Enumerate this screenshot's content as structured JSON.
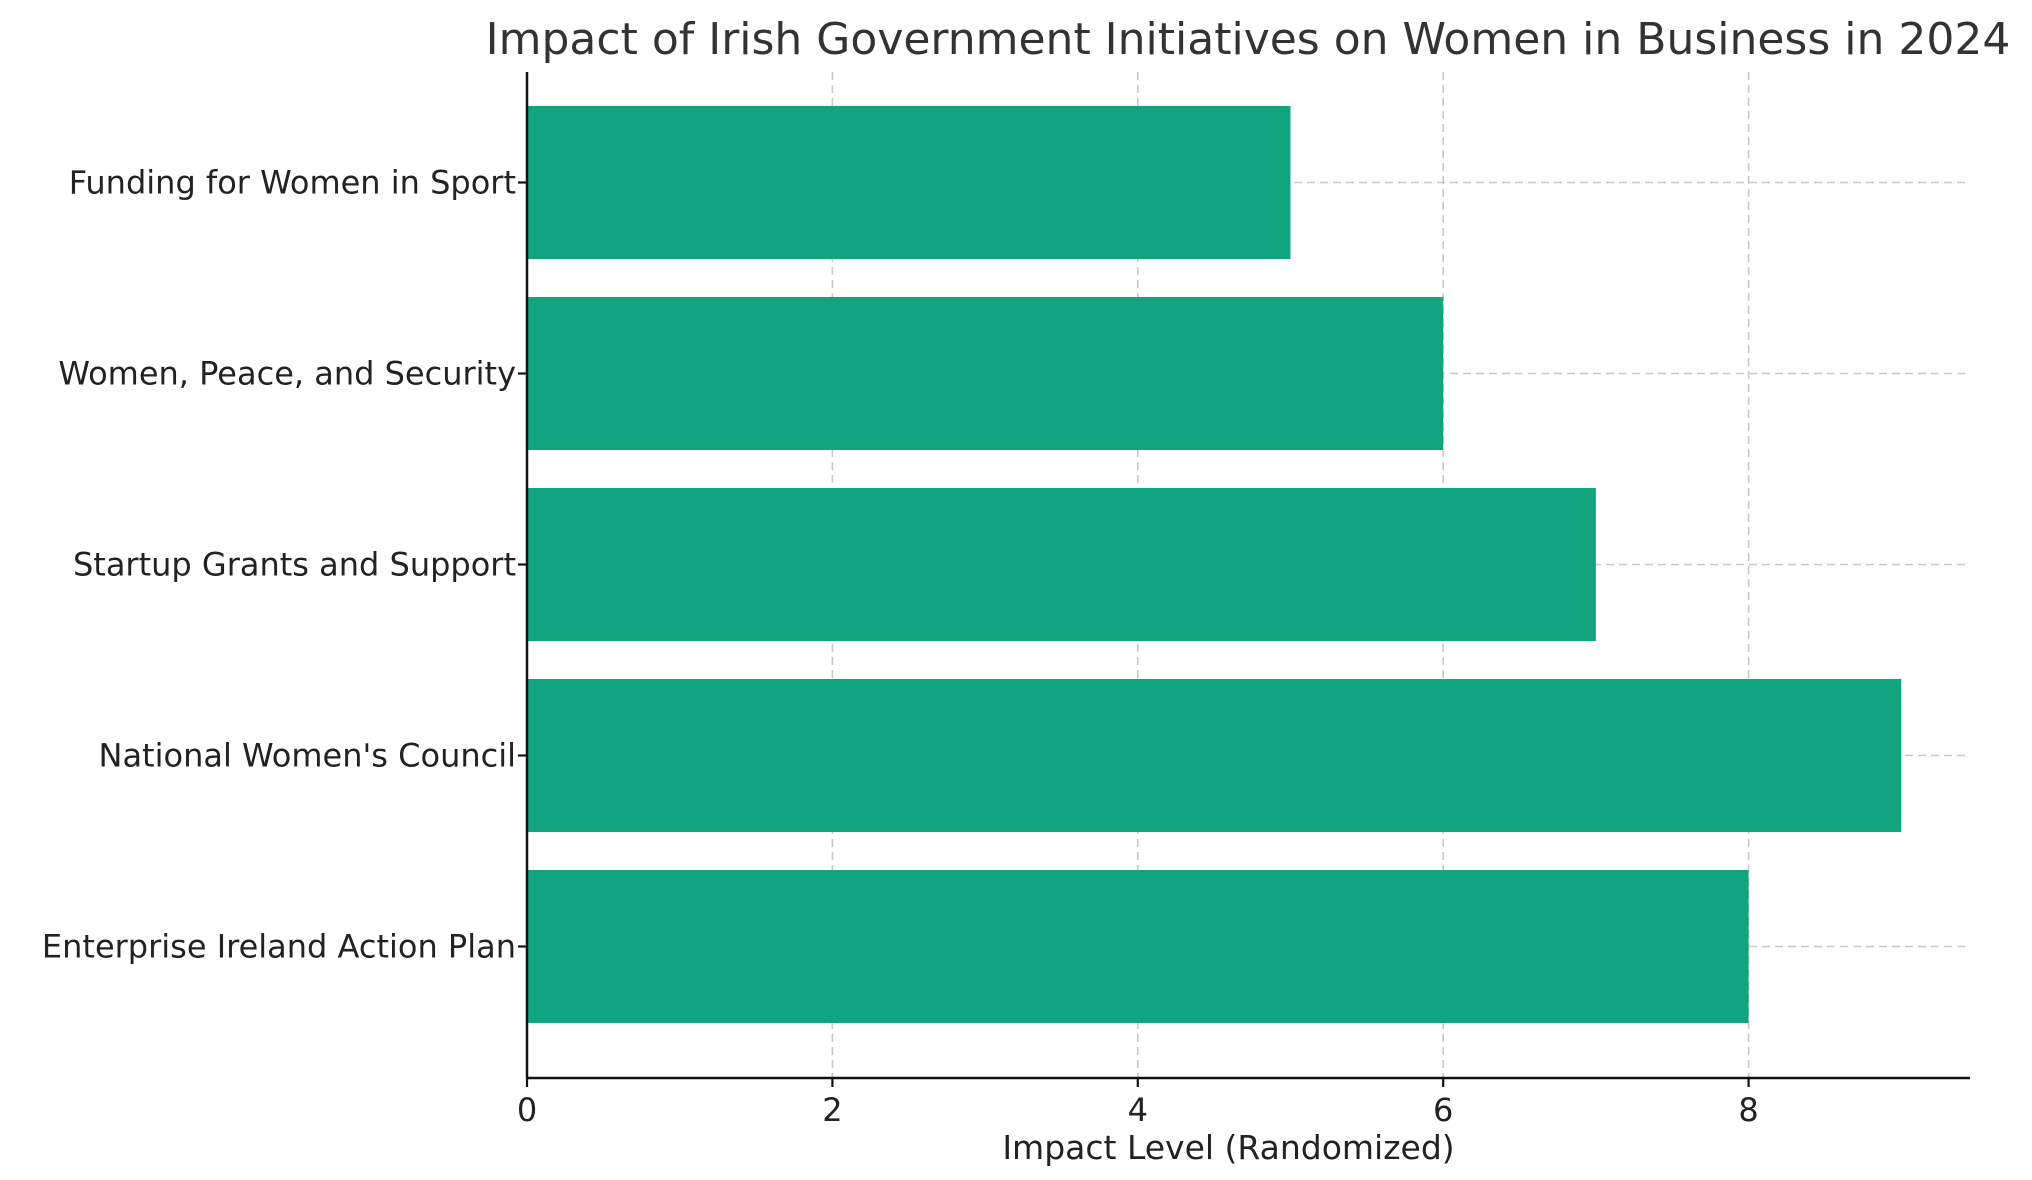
{
  "chart_data": {
    "type": "bar",
    "orientation": "horizontal",
    "title": "Impact of Irish Government Initiatives on Women in Business in 2024",
    "xlabel": "Impact Level (Randomized)",
    "ylabel": "",
    "categories": [
      "Enterprise Ireland Action Plan",
      "National Women's Council",
      "Startup Grants and Support",
      "Women, Peace, and Security",
      "Funding for Women in Sport"
    ],
    "values": [
      8,
      9,
      7,
      6,
      5
    ],
    "xlim": [
      0,
      9.45
    ],
    "xticks": [
      0,
      2,
      4,
      6,
      8
    ],
    "xtick_labels": [
      "0",
      "2",
      "4",
      "6",
      "8"
    ],
    "grid": true,
    "bar_color": "#12a37f"
  }
}
